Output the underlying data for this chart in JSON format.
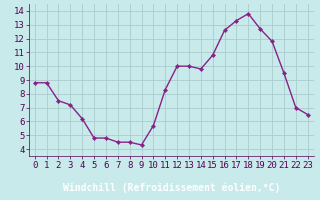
{
  "x": [
    0,
    1,
    2,
    3,
    4,
    5,
    6,
    7,
    8,
    9,
    10,
    11,
    12,
    13,
    14,
    15,
    16,
    17,
    18,
    19,
    20,
    21,
    22,
    23
  ],
  "y": [
    8.8,
    8.8,
    7.5,
    7.2,
    6.2,
    4.8,
    4.8,
    4.5,
    4.5,
    4.3,
    5.7,
    8.3,
    10.0,
    10.0,
    9.8,
    10.8,
    12.6,
    13.3,
    13.8,
    12.7,
    11.8,
    9.5,
    7.0,
    6.5
  ],
  "line_color": "#882288",
  "marker_color": "#882288",
  "bg_color": "#c8eaea",
  "grid_color": "#aacccc",
  "xlim": [
    -0.5,
    23.5
  ],
  "ylim": [
    3.5,
    14.5
  ],
  "yticks": [
    4,
    5,
    6,
    7,
    8,
    9,
    10,
    11,
    12,
    13,
    14
  ],
  "xticks": [
    0,
    1,
    2,
    3,
    4,
    5,
    6,
    7,
    8,
    9,
    10,
    11,
    12,
    13,
    14,
    15,
    16,
    17,
    18,
    19,
    20,
    21,
    22,
    23
  ],
  "tick_label_fontsize": 6.5,
  "xlabel_fontsize": 7,
  "xlabel": "Windchill (Refroidissement éolien,°C)",
  "xtick_bar_color": "#c8a0c8",
  "xlabel_bar_color": "#7700aa",
  "tick_text_color": "#550055",
  "xlabel_text_color": "#ffffff",
  "ytick_text_color": "#550055"
}
